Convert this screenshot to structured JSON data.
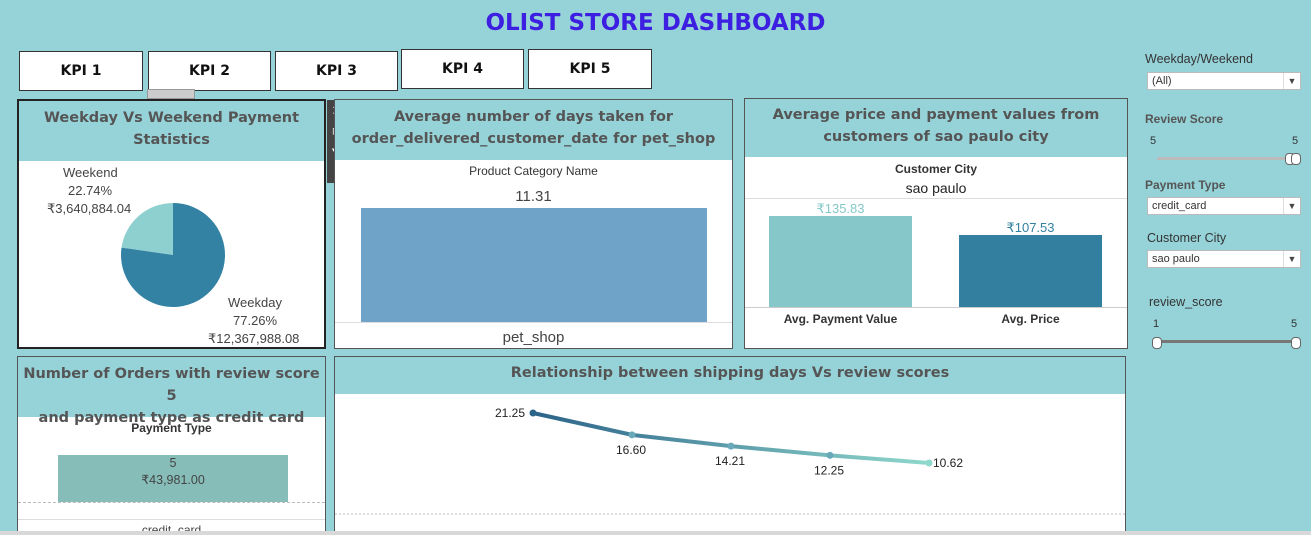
{
  "dashboard": {
    "title": "OLIST STORE DASHBOARD"
  },
  "kpi_tabs": [
    {
      "label": "KPI 1"
    },
    {
      "label": "KPI 2"
    },
    {
      "label": "KPI 3"
    },
    {
      "label": "KPI 4"
    },
    {
      "label": "KPI 5"
    }
  ],
  "panel1": {
    "title_line1": "Weekday Vs Weekend Payment",
    "title_line2": "Statistics",
    "weekend": {
      "label": "Weekend",
      "pct": "22.74%",
      "value": "₹3,640,884.04"
    },
    "weekday": {
      "label": "Weekday",
      "pct": "77.26%",
      "value": "₹12,367,988.08"
    },
    "chart_data": {
      "type": "pie",
      "categories": [
        "Weekend",
        "Weekday"
      ],
      "values": [
        22.74,
        77.26
      ],
      "colors": [
        "#8ecfd0",
        "#3381a3"
      ]
    }
  },
  "panel2": {
    "title_line1": "Average number of days taken for",
    "title_line2": "order_delivered_customer_date for pet_shop",
    "header": "Product Category Name",
    "value_label": "11.31",
    "category": "pet_shop",
    "chart_data": {
      "type": "bar",
      "categories": [
        "pet_shop"
      ],
      "values": [
        11.31
      ],
      "color": "#6fa4c8"
    }
  },
  "panel3": {
    "title_line1": "Average price and payment values from",
    "title_line2": "customers of sao paulo city",
    "header": "Customer City",
    "city": "sao paulo",
    "labels": [
      "₹135.83",
      "₹107.53"
    ],
    "chart_data": {
      "type": "bar",
      "categories": [
        "Avg. Payment Value",
        "Avg. Price"
      ],
      "values": [
        135.83,
        107.53
      ],
      "colors": [
        "#86c8c9",
        "#327f9f"
      ]
    }
  },
  "panel4": {
    "title_line1": "Number of Orders with review score 5",
    "title_line2": "and payment type as credit card",
    "header": "Payment Type",
    "bar_line1": "5",
    "bar_line2": "₹43,981.00",
    "category": "credit_card",
    "chart_data": {
      "type": "bar",
      "categories": [
        "credit_card"
      ],
      "values": [
        43981.0
      ],
      "color": "#86bdb8"
    }
  },
  "panel5": {
    "title": "Relationship between shipping days Vs review scores",
    "labels": [
      "21.25",
      "16.60",
      "14.21",
      "12.25",
      "10.62"
    ],
    "chart_data": {
      "type": "line",
      "x": [
        1,
        2,
        3,
        4,
        5
      ],
      "values": [
        21.25,
        16.6,
        14.21,
        12.25,
        10.62
      ],
      "colors": [
        "#2c6389",
        "#8fd8cc"
      ]
    }
  },
  "filters": {
    "weekday": {
      "label": "Weekday/Weekend",
      "value": "(All)"
    },
    "review_score": {
      "label": "Review Score",
      "min": "5",
      "max": "5"
    },
    "payment_type": {
      "label": "Payment Type",
      "value": "credit_card"
    },
    "customer_city": {
      "label": "Customer City",
      "value": "sao paulo"
    },
    "review_score2": {
      "label": "review_score",
      "min": "1",
      "max": "5"
    }
  },
  "toolbar": {
    "icons": [
      "close-icon",
      "expand-icon",
      "filter-icon",
      "more-icon"
    ],
    "glyphs": [
      "✕",
      "⧉",
      "⛛",
      "▾"
    ]
  }
}
